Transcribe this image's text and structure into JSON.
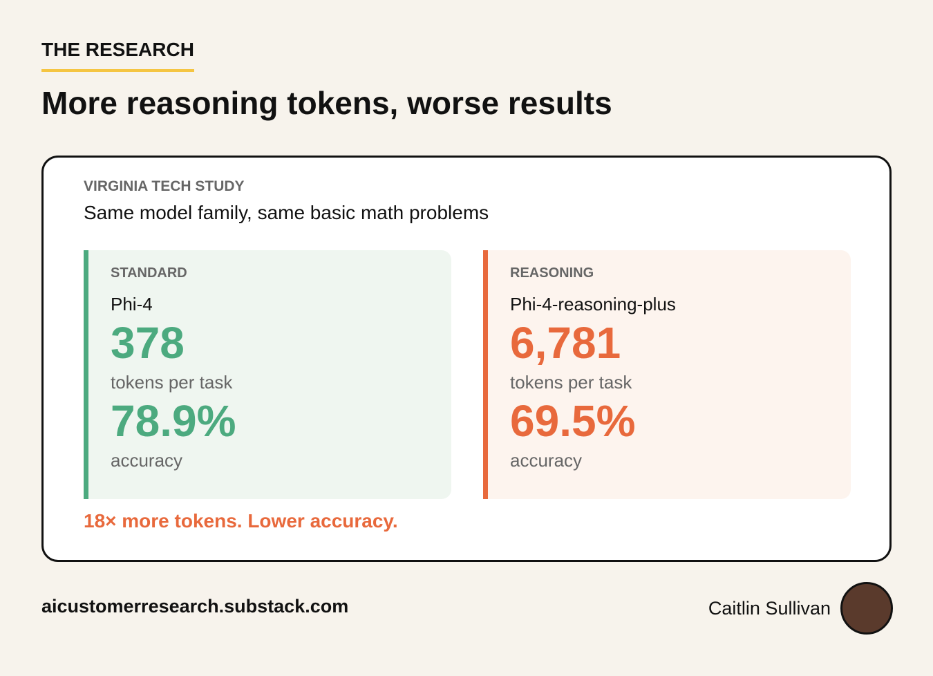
{
  "header": {
    "eyebrow": "THE RESEARCH",
    "title": "More reasoning tokens, worse results"
  },
  "card": {
    "label": "VIRGINIA TECH STUDY",
    "subtitle": "Same model family, same basic math problems",
    "panels": [
      {
        "kind": "STANDARD",
        "model": "Phi-4",
        "tokens": "378",
        "tokens_label": "tokens per task",
        "accuracy": "78.9%",
        "accuracy_label": "accuracy"
      },
      {
        "kind": "REASONING",
        "model": "Phi-4-reasoning-plus",
        "tokens": "6,781",
        "tokens_label": "tokens per task",
        "accuracy": "69.5%",
        "accuracy_label": "accuracy"
      }
    ],
    "conclusion": "18× more tokens. Lower accuracy."
  },
  "footer": {
    "site": "aicustomerresearch.substack.com",
    "author": "Caitlin Sullivan"
  }
}
